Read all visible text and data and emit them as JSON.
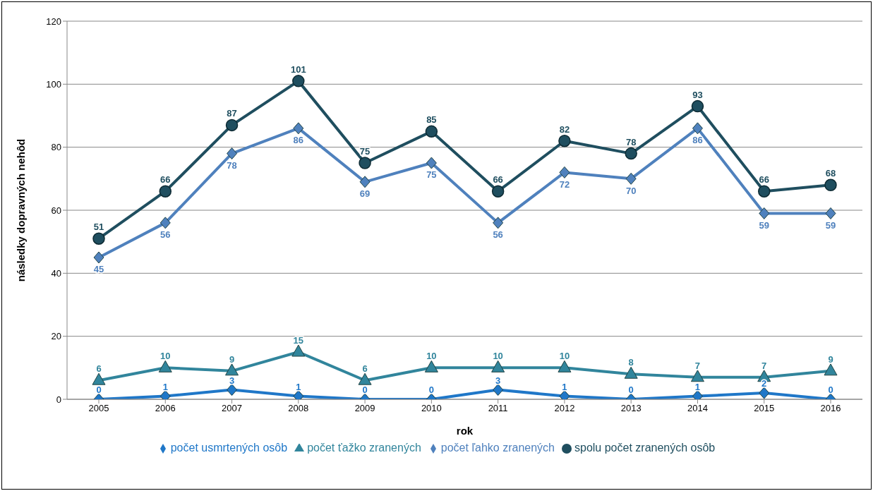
{
  "chart_data": {
    "type": "line",
    "xlabel": "rok",
    "ylabel": "následky dopravných nehôd",
    "categories": [
      "2005",
      "2006",
      "2007",
      "2008",
      "2009",
      "2010",
      "2011",
      "2012",
      "2013",
      "2014",
      "2015",
      "2016"
    ],
    "series": [
      {
        "name": "počet usmrtených osôb",
        "color": "#1f77c8",
        "marker": "diamond",
        "values": [
          0,
          1,
          3,
          1,
          0,
          0,
          3,
          1,
          0,
          1,
          2,
          0
        ]
      },
      {
        "name": "počet ťažko zranených",
        "color": "#31859c",
        "marker": "triangle",
        "values": [
          6,
          10,
          9,
          15,
          6,
          10,
          10,
          10,
          8,
          7,
          7,
          9
        ]
      },
      {
        "name": "počet ľahko zranených",
        "color": "#4f81bd",
        "marker": "diamond",
        "values": [
          45,
          56,
          78,
          86,
          69,
          75,
          56,
          72,
          70,
          86,
          59,
          59
        ]
      },
      {
        "name": "spolu počet zranených osôb",
        "color": "#1f4e5f",
        "marker": "circle",
        "values": [
          51,
          66,
          87,
          101,
          75,
          85,
          66,
          82,
          78,
          93,
          66,
          68
        ]
      }
    ],
    "ylim": [
      0,
      120
    ],
    "yticks": [
      0,
      20,
      40,
      60,
      80,
      100,
      120
    ],
    "grid": "y",
    "legend": "bottom",
    "data_labels": true
  }
}
